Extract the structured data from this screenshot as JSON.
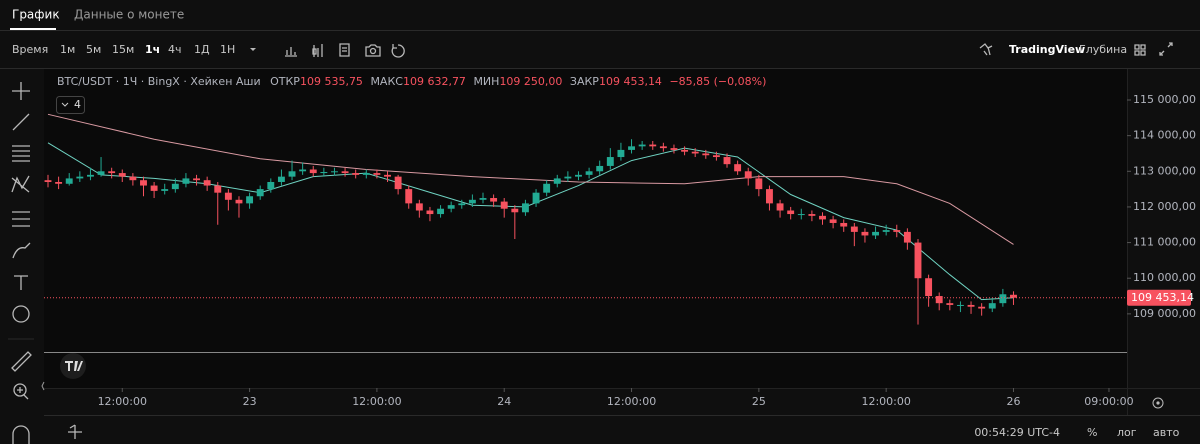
{
  "tabs": [
    "График",
    "Данные о монете"
  ],
  "toolbar": {
    "time_label": "Время",
    "intervals": [
      "1м",
      "5м",
      "15м",
      "1ч",
      "4ч",
      "1Д",
      "1Н"
    ],
    "brand": "TradingView",
    "depth": "Глубина"
  },
  "footer": {
    "clock": "00:54:29 UTC-4",
    "percent": "%",
    "log": "лог",
    "auto": "авто"
  },
  "chart_data": {
    "type": "candlestick",
    "info": {
      "symbol": "BTC/USDT · 1Ч · BingX · Хейкен Аши",
      "open_label": "ОТКР",
      "open": "109 535,75",
      "high_label": "МАКС",
      "high": "109 632,77",
      "low_label": "МИН",
      "low": "109 250,00",
      "close_label": "ЗАКР",
      "close": "109 453,14",
      "change": "−85,85 (−0,08%)"
    },
    "indicators_count": 4,
    "last_price_label": "109 453,14",
    "up_color": "#22ab94",
    "down_color": "#f7525f",
    "xlim": [
      -0.5,
      101.7
    ],
    "xticks": [
      {
        "value": 7,
        "label": "12:00:00"
      },
      {
        "value": 19,
        "label": "23"
      },
      {
        "value": 31,
        "label": "12:00:00"
      },
      {
        "value": 43,
        "label": "24"
      },
      {
        "value": 55,
        "label": "12:00:00"
      },
      {
        "value": 67,
        "label": "25"
      },
      {
        "value": 79,
        "label": "12:00:00"
      },
      {
        "value": 91,
        "label": "26"
      },
      {
        "value": 100,
        "label": "09:00:00"
      }
    ],
    "ylim": [
      107930,
      115870
    ],
    "yticks": [
      {
        "value": 109000,
        "label": "109 000,00"
      },
      {
        "value": 110000,
        "label": "110 000,00"
      },
      {
        "value": 111000,
        "label": "111 000,00"
      },
      {
        "value": 112000,
        "label": "112 000,00"
      },
      {
        "value": 113000,
        "label": "113 000,00"
      },
      {
        "value": 114000,
        "label": "114 000,00"
      },
      {
        "value": 115000,
        "label": "115 000,00"
      }
    ],
    "grid": false,
    "open": [
      112750,
      112700,
      112650,
      112800,
      112850,
      112900,
      113000,
      112950,
      112850,
      112750,
      112600,
      112450,
      112500,
      112650,
      112800,
      112750,
      112600,
      112400,
      112200,
      112100,
      112300,
      112500,
      112700,
      112850,
      113000,
      113050,
      112950,
      112980,
      113000,
      112950,
      112900,
      112950,
      112900,
      112850,
      112500,
      112100,
      111900,
      111800,
      111950,
      112050,
      112100,
      112200,
      112250,
      112150,
      111950,
      111850,
      112100,
      112400,
      112650,
      112800,
      112850,
      112900,
      113000,
      113150,
      113400,
      113600,
      113700,
      113750,
      113700,
      113650,
      113600,
      113550,
      113500,
      113450,
      113400,
      113200,
      113000,
      112800,
      112500,
      112100,
      111900,
      111800,
      111800,
      111750,
      111650,
      111550,
      111450,
      111300,
      111200,
      111300,
      111350,
      111300,
      111000,
      110000,
      109500,
      109300,
      109250,
      109250,
      109200,
      109150,
      109300,
      109535.75
    ],
    "high": [
      112900,
      112850,
      112950,
      113000,
      113100,
      113400,
      113100,
      113050,
      112950,
      112850,
      112700,
      112650,
      112800,
      112950,
      112900,
      112850,
      112700,
      112500,
      112300,
      112400,
      112600,
      112800,
      113050,
      113300,
      113250,
      113150,
      113100,
      113100,
      113100,
      113050,
      113050,
      113050,
      113000,
      112900,
      112600,
      112200,
      112000,
      112050,
      112150,
      112200,
      112350,
      112400,
      112350,
      112250,
      112050,
      112200,
      112500,
      112750,
      112900,
      113000,
      113000,
      113100,
      113300,
      113650,
      113800,
      113900,
      113850,
      113850,
      113800,
      113750,
      113700,
      113650,
      113600,
      113550,
      113500,
      113300,
      113100,
      112900,
      112600,
      112200,
      112000,
      111950,
      111900,
      111850,
      111750,
      111650,
      111550,
      111400,
      111450,
      111500,
      111500,
      111400,
      111100,
      110100,
      109600,
      109400,
      109350,
      109350,
      109300,
      109450,
      109700,
      109632.77
    ],
    "low": [
      112550,
      112500,
      112600,
      112700,
      112750,
      112850,
      112800,
      112700,
      112600,
      112300,
      112250,
      112350,
      112400,
      112550,
      112600,
      112450,
      111500,
      111900,
      111700,
      111950,
      112200,
      112400,
      112600,
      112750,
      112900,
      112850,
      112850,
      112880,
      112850,
      112800,
      112800,
      112800,
      112700,
      112350,
      111950,
      111700,
      111600,
      111700,
      111850,
      111950,
      112000,
      112100,
      112000,
      111700,
      111100,
      111750,
      112000,
      112300,
      112550,
      112700,
      112750,
      112800,
      112900,
      113050,
      113300,
      113500,
      113600,
      113600,
      113550,
      113500,
      113450,
      113400,
      113350,
      113300,
      113100,
      112900,
      112600,
      112300,
      111900,
      111700,
      111650,
      111650,
      111600,
      111500,
      111400,
      111300,
      110900,
      111000,
      111100,
      111200,
      111150,
      110800,
      108700,
      109200,
      109100,
      109100,
      109050,
      109000,
      108950,
      109050,
      109200,
      109250
    ],
    "close": [
      112700,
      112650,
      112800,
      112850,
      112900,
      113000,
      112950,
      112850,
      112750,
      112600,
      112450,
      112500,
      112650,
      112800,
      112750,
      112600,
      112400,
      112200,
      112100,
      112300,
      112500,
      112700,
      112850,
      113000,
      113050,
      112950,
      112980,
      113000,
      112950,
      112900,
      112950,
      112900,
      112850,
      112500,
      112100,
      111900,
      111800,
      111950,
      112050,
      112100,
      112200,
      112250,
      112150,
      111950,
      111850,
      112100,
      112400,
      112650,
      112800,
      112850,
      112900,
      113000,
      113150,
      113400,
      113600,
      113700,
      113750,
      113700,
      113650,
      113600,
      113550,
      113500,
      113450,
      113400,
      113200,
      113000,
      112800,
      112500,
      112100,
      111900,
      111800,
      111800,
      111750,
      111650,
      111550,
      111450,
      111300,
      111200,
      111300,
      111350,
      111300,
      111000,
      110000,
      109500,
      109300,
      109250,
      109250,
      109200,
      109150,
      109300,
      109550,
      109453.14
    ],
    "lines": [
      {
        "color": "#6fd3c2",
        "x": [
          0,
          5,
          10,
          15,
          20,
          25,
          30,
          35,
          40,
          45,
          50,
          55,
          60,
          65,
          70,
          75,
          80,
          85,
          88,
          91
        ],
        "values": [
          113800,
          112900,
          112800,
          112650,
          112400,
          112850,
          112950,
          112500,
          112050,
          112000,
          112600,
          113300,
          113650,
          113400,
          112350,
          111700,
          111350,
          110100,
          109400,
          109450
        ]
      },
      {
        "color": "#d99aa2",
        "x": [
          0,
          10,
          20,
          30,
          40,
          50,
          60,
          67,
          75,
          80,
          85,
          91
        ],
        "values": [
          114600,
          113900,
          113350,
          113050,
          112850,
          112700,
          112650,
          112850,
          112850,
          112650,
          112100,
          110950
        ]
      }
    ]
  }
}
